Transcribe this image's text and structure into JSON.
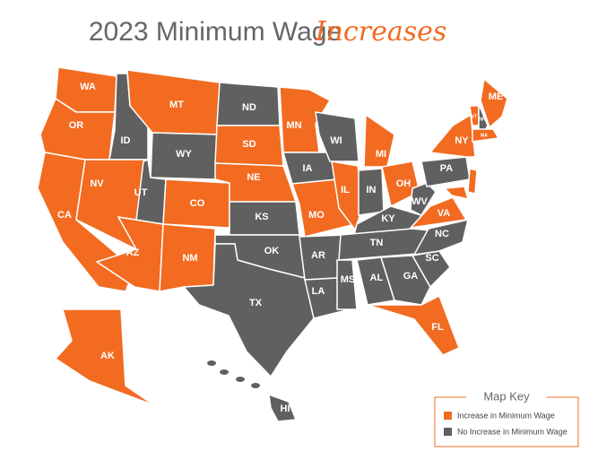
{
  "title": {
    "main": "2023 Minimum Wage",
    "accent": "Increases"
  },
  "legend": {
    "title": "Map Key",
    "items": [
      {
        "label": "Increase in Minimum Wage",
        "color": "#f26b21"
      },
      {
        "label": "No Increase in Minimum Wage",
        "color": "#606060"
      }
    ]
  },
  "states": [
    {
      "label": "WA",
      "increase": true
    },
    {
      "label": "OR",
      "increase": true
    },
    {
      "label": "CA",
      "increase": true
    },
    {
      "label": "ID",
      "increase": false
    },
    {
      "label": "NV",
      "increase": true
    },
    {
      "label": "MT",
      "increase": true
    },
    {
      "label": "WY",
      "increase": false
    },
    {
      "label": "UT",
      "increase": false
    },
    {
      "label": "AZ",
      "increase": true
    },
    {
      "label": "CO",
      "increase": true
    },
    {
      "label": "NM",
      "increase": true
    },
    {
      "label": "ND",
      "increase": false
    },
    {
      "label": "SD",
      "increase": true
    },
    {
      "label": "NE",
      "increase": true
    },
    {
      "label": "KS",
      "increase": false
    },
    {
      "label": "OK",
      "increase": false
    },
    {
      "label": "TX",
      "increase": false
    },
    {
      "label": "MN",
      "increase": true
    },
    {
      "label": "IA",
      "increase": false
    },
    {
      "label": "MO",
      "increase": true
    },
    {
      "label": "AR",
      "increase": false
    },
    {
      "label": "LA",
      "increase": false
    },
    {
      "label": "WI",
      "increase": false
    },
    {
      "label": "IL",
      "increase": true
    },
    {
      "label": "MI",
      "increase": true
    },
    {
      "label": "IN",
      "increase": false
    },
    {
      "label": "OH",
      "increase": true
    },
    {
      "label": "KY",
      "increase": false
    },
    {
      "label": "TN",
      "increase": false
    },
    {
      "label": "MS",
      "increase": false
    },
    {
      "label": "AL",
      "increase": false
    },
    {
      "label": "GA",
      "increase": false
    },
    {
      "label": "FL",
      "increase": true
    },
    {
      "label": "SC",
      "increase": false
    },
    {
      "label": "NC",
      "increase": false
    },
    {
      "label": "VA",
      "increase": true
    },
    {
      "label": "WV",
      "increase": false
    },
    {
      "label": "PA",
      "increase": false
    },
    {
      "label": "NY",
      "increase": true
    },
    {
      "label": null,
      "increase": true
    },
    {
      "label": "ME",
      "increase": true
    },
    {
      "label": "VT",
      "increase": true
    },
    {
      "label": "NH",
      "increase": false
    },
    {
      "label": "MA",
      "increase": true
    },
    {
      "label": null,
      "increase": true
    },
    {
      "label": "AK",
      "increase": true
    },
    {
      "label": "HI",
      "increase": false
    }
  ]
}
